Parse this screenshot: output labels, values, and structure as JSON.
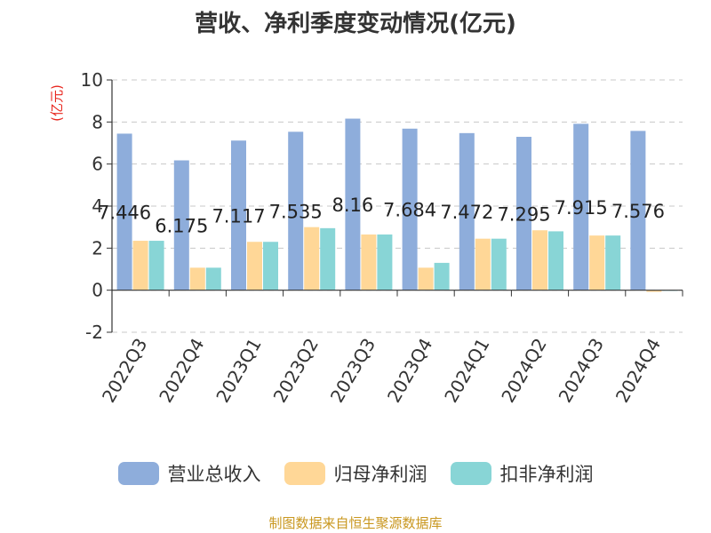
{
  "chart_data": {
    "type": "bar",
    "title": "营收、净利季度变动情况(亿元)",
    "ylabel": "(亿元)",
    "xlabel": "",
    "ylim": [
      -2,
      10
    ],
    "yticks": [
      "-2",
      "0",
      "2",
      "4",
      "6",
      "8",
      "10"
    ],
    "grid": true,
    "legend_position": "bottom",
    "categories": [
      "2022Q3",
      "2022Q4",
      "2023Q1",
      "2023Q2",
      "2023Q3",
      "2023Q4",
      "2024Q1",
      "2024Q2",
      "2024Q3",
      "2024Q4"
    ],
    "series": [
      {
        "name": "营业总收入",
        "color": "#8eaddb",
        "values": [
          7.446,
          6.175,
          7.117,
          7.535,
          8.16,
          7.684,
          7.472,
          7.295,
          7.915,
          7.576
        ]
      },
      {
        "name": "归母净利润",
        "color": "#ffd797",
        "values": [
          2.35,
          1.07,
          2.3,
          3.0,
          2.65,
          1.07,
          2.45,
          2.85,
          2.6,
          -0.08
        ]
      },
      {
        "name": "扣非净利润",
        "color": "#88d5d6",
        "values": [
          2.35,
          1.07,
          2.3,
          2.95,
          2.65,
          1.3,
          2.45,
          2.8,
          2.6,
          -0.03
        ]
      }
    ],
    "data_labels": [
      "7.446",
      "6.175",
      "7.117",
      "7.535",
      "8.16",
      "7.684",
      "7.472",
      "7.295",
      "7.915",
      "7.576"
    ]
  },
  "source": "制图数据来自恒生聚源数据库"
}
